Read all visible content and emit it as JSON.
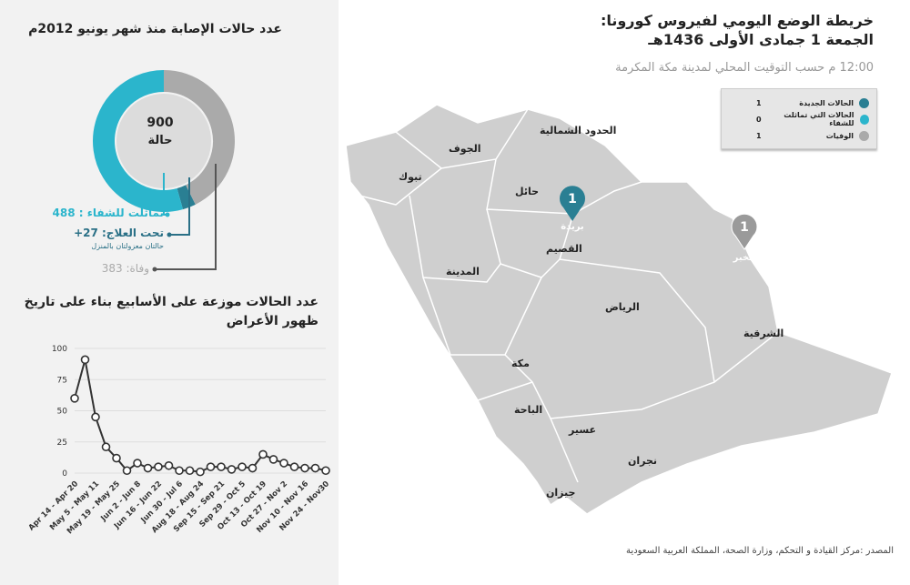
{
  "header": {
    "title_line1": "خريطة الوضع اليومي لفيروس كورونا:",
    "title_line2": "الجمعة 1 جمادى الأولى 1436هـ",
    "subtitle": "12:00 م حسب التوقيت المحلي لمدينة مكة المكرمة"
  },
  "legend": [
    {
      "label": "الحالات الجديدة",
      "value": "1",
      "color": "#2a7f93"
    },
    {
      "label": "الحالات التي تماثلت للشفاء",
      "value": "0",
      "color": "#2bb5cc"
    },
    {
      "label": "الوفيات",
      "value": "1",
      "color": "#aaaaaa"
    }
  ],
  "map": {
    "regions": [
      "الحدود الشمالية",
      "الجوف",
      "تبوك",
      "حائل",
      "القصيم",
      "المدينة",
      "الرياض",
      "الشرقية",
      "مكة",
      "الباحة",
      "عسير",
      "نجران",
      "جيزان"
    ],
    "markers": [
      {
        "count": "1",
        "city": "بريدة",
        "color": "#2a7f93"
      },
      {
        "count": "1",
        "city": "الخبر",
        "color": "#aaaaaa"
      }
    ]
  },
  "summary": {
    "title": "عدد حالات الإصابة منذ شهر يونيو  2012م",
    "total": "900",
    "total_unit": "حالة",
    "cured_label": "تماثلت للشفاء : 488",
    "treatment_label": "تحت العلاج: 27+",
    "treatment_note": "حالتان معزولتان بالمنزل",
    "deaths_label": "وفاة: 383",
    "cured": 488,
    "treatment": 27,
    "deaths": 383,
    "colors": {
      "cured": "#2bb5cc",
      "treatment": "#2a7f93",
      "deaths": "#aaaaaa"
    }
  },
  "chart_data": {
    "type": "line",
    "title": "عدد الحالات موزعة على الأسابيع بناء على تاريخ ظهور الأعراض",
    "ylim": [
      0,
      100
    ],
    "yticks": [
      0,
      25,
      50,
      75,
      100
    ],
    "grid": true,
    "xticklabels": [
      "Apr 14 - Apr 20",
      "May 5 - May 11",
      "May 19 - May 25",
      "Jun 2 - Jun 8",
      "Jun 16 - Jun 22",
      "Jun 30 - Jul 6",
      "Aug 18 - Aug 24",
      "Sep 15 - Sep 21",
      "Sep 29 - Oct 5",
      "Oct 13 - Oct 19",
      "Oct 27 - Nov 2",
      "Nov 10 - Nov 16",
      "Nov 24 - Nov30"
    ],
    "values": [
      60,
      91,
      45,
      21,
      12,
      2,
      8,
      4,
      5,
      6,
      2,
      2,
      1,
      5,
      5,
      3,
      5,
      4,
      15,
      11,
      8,
      5,
      4,
      4,
      2
    ]
  },
  "source": "المصدر :مركز القيادة و التحكم، وزارة الصحة، المملكة العربية السعودية"
}
